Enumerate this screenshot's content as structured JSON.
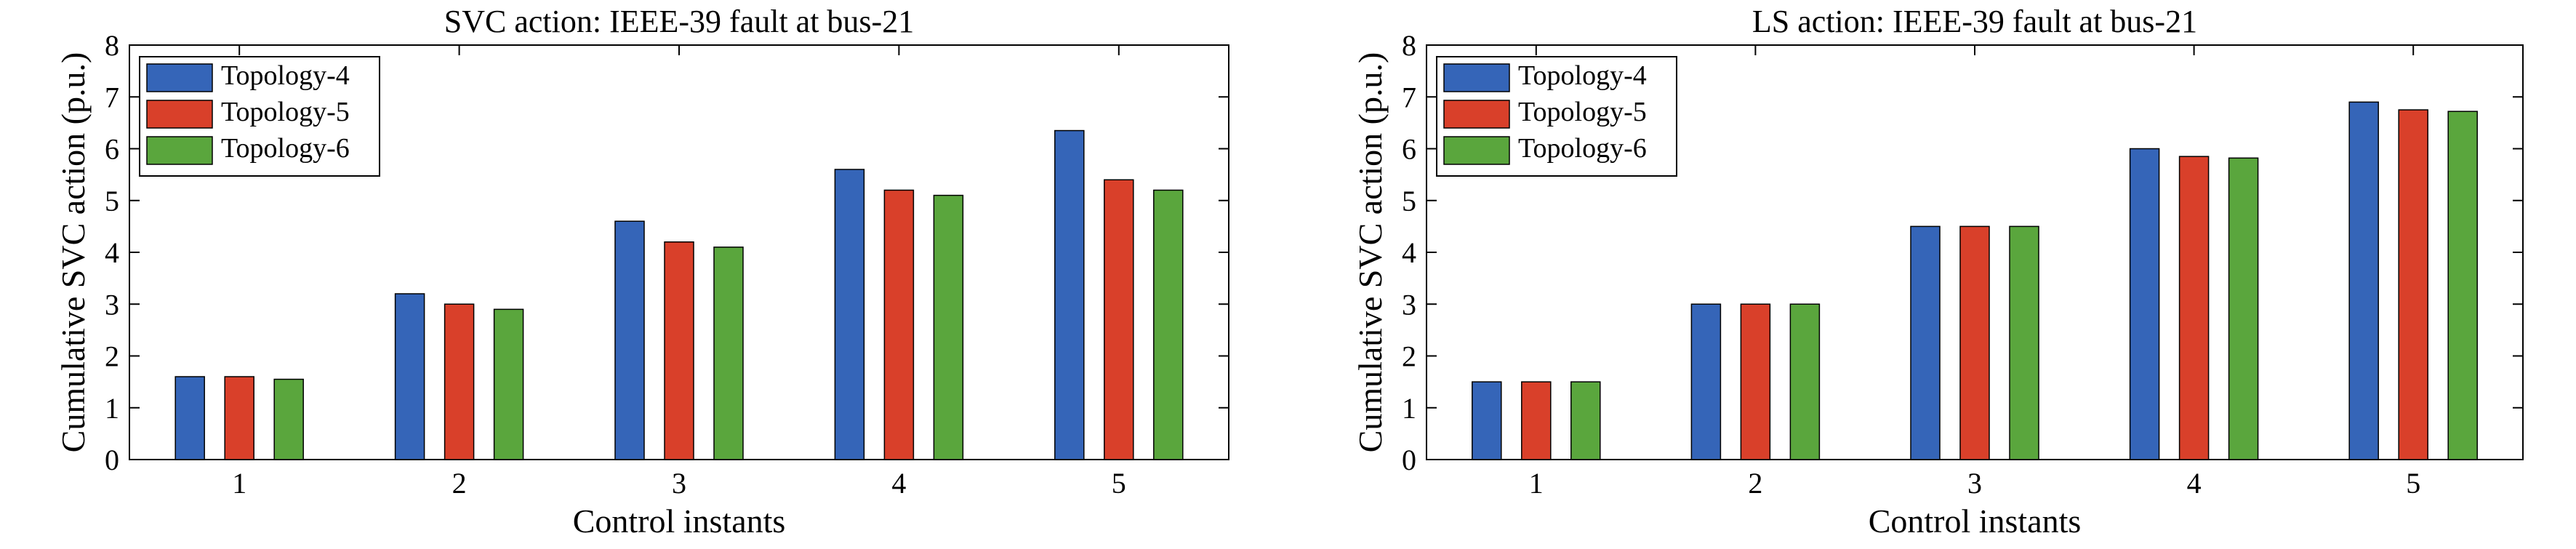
{
  "chart_data": [
    {
      "type": "bar",
      "title": "SVC action: IEEE-39 fault at bus-21",
      "xlabel": "Control instants",
      "ylabel": "Cumulative SVC action (p.u.)",
      "categories": [
        "1",
        "2",
        "3",
        "4",
        "5"
      ],
      "ylim": [
        0,
        8
      ],
      "yticks": [
        "0",
        "1",
        "2",
        "3",
        "4",
        "5",
        "6",
        "7",
        "8"
      ],
      "grid": false,
      "legend_position": "top-left",
      "series": [
        {
          "name": "Topology-4",
          "color": "#3565b8",
          "values": [
            1.6,
            3.2,
            4.6,
            5.6,
            6.35
          ]
        },
        {
          "name": "Topology-5",
          "color": "#d9402a",
          "values": [
            1.6,
            3.0,
            4.2,
            5.2,
            5.4
          ]
        },
        {
          "name": "Topology-6",
          "color": "#5aa63d",
          "values": [
            1.55,
            2.9,
            4.1,
            5.1,
            5.2
          ]
        }
      ]
    },
    {
      "type": "bar",
      "title": "LS action: IEEE-39 fault at bus-21",
      "xlabel": "Control instants",
      "ylabel": "Cumulative SVC action (p.u.)",
      "categories": [
        "1",
        "2",
        "3",
        "4",
        "5"
      ],
      "ylim": [
        0,
        8
      ],
      "yticks": [
        "0",
        "1",
        "2",
        "3",
        "4",
        "5",
        "6",
        "7",
        "8"
      ],
      "grid": false,
      "legend_position": "top-left",
      "series": [
        {
          "name": "Topology-4",
          "color": "#3565b8",
          "values": [
            1.5,
            3.0,
            4.5,
            6.0,
            6.9
          ]
        },
        {
          "name": "Topology-5",
          "color": "#d9402a",
          "values": [
            1.5,
            3.0,
            4.5,
            5.85,
            6.75
          ]
        },
        {
          "name": "Topology-6",
          "color": "#5aa63d",
          "values": [
            1.5,
            3.0,
            4.5,
            5.82,
            6.72
          ]
        }
      ]
    }
  ]
}
